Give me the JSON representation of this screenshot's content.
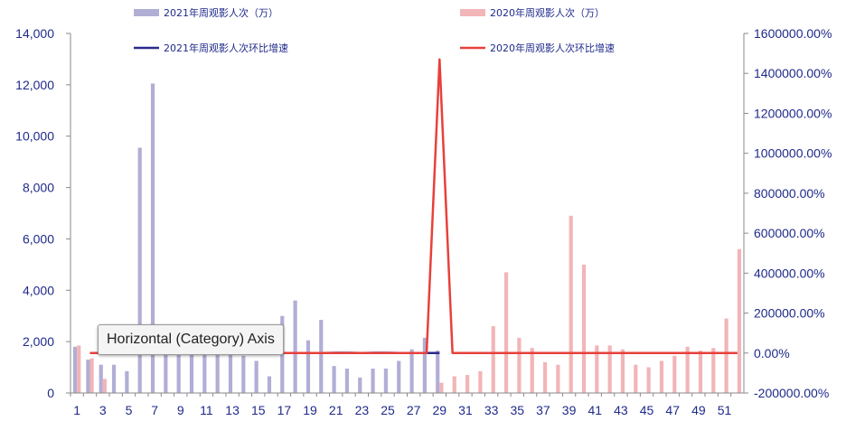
{
  "chart_data": {
    "type": "bar",
    "title": "",
    "xlabel": "",
    "ylabel": "",
    "ylim": [
      0,
      14000
    ],
    "y2lim": [
      -200000,
      1600000
    ],
    "x": [
      1,
      2,
      3,
      4,
      5,
      6,
      7,
      8,
      9,
      10,
      11,
      12,
      13,
      14,
      15,
      16,
      17,
      18,
      19,
      20,
      21,
      22,
      23,
      24,
      25,
      26,
      27,
      28,
      29,
      30,
      31,
      32,
      33,
      34,
      35,
      36,
      37,
      38,
      39,
      40,
      41,
      42,
      43,
      44,
      45,
      46,
      47,
      48,
      49,
      50,
      51,
      52
    ],
    "x_tick_labels": [
      "1",
      "3",
      "5",
      "7",
      "9",
      "11",
      "13",
      "15",
      "17",
      "19",
      "21",
      "23",
      "25",
      "27",
      "29",
      "31",
      "33",
      "35",
      "37",
      "39",
      "41",
      "43",
      "45",
      "47",
      "49",
      "51"
    ],
    "y_tick_labels": [
      "0",
      "2,000",
      "4,000",
      "6,000",
      "8,000",
      "10,000",
      "12,000",
      "14,000"
    ],
    "y2_tick_labels": [
      "-200000.00%",
      "0.00%",
      "200000.00%",
      "400000.00%",
      "600000.00%",
      "800000.00%",
      "1000000.00%",
      "1200000.00%",
      "1400000.00%",
      "1600000.00%"
    ],
    "series": [
      {
        "name": "2021年周观影人次（万）",
        "kind": "bar",
        "axis": "left",
        "color": "#b1aed6",
        "values": [
          1800,
          1300,
          1100,
          1100,
          850,
          9550,
          12050,
          1950,
          1750,
          1800,
          2200,
          2100,
          2150,
          1450,
          1250,
          650,
          3000,
          3600,
          2050,
          2850,
          1050,
          950,
          600,
          950,
          950,
          1250,
          1700,
          2150,
          1650,
          null,
          null,
          null,
          null,
          null,
          null,
          null,
          null,
          null,
          null,
          null,
          null,
          null,
          null,
          null,
          null,
          null,
          null,
          null,
          null,
          null,
          null,
          null
        ]
      },
      {
        "name": "2020年周观影人次（万）",
        "kind": "bar",
        "axis": "left",
        "color": "#f2b5b8",
        "values": [
          1850,
          1350,
          550,
          null,
          null,
          null,
          null,
          null,
          null,
          null,
          null,
          null,
          null,
          null,
          null,
          null,
          null,
          null,
          null,
          null,
          null,
          null,
          null,
          null,
          null,
          null,
          null,
          null,
          400,
          650,
          700,
          850,
          2600,
          4700,
          2150,
          1750,
          1200,
          1100,
          6900,
          5000,
          1850,
          1850,
          1700,
          1100,
          1000,
          1250,
          1450,
          1800,
          1650,
          1750,
          2900,
          5600
        ]
      },
      {
        "name": "2021年周观影人次环比增速",
        "kind": "line",
        "axis": "right",
        "color": "#2b2a8c",
        "values": [
          null,
          0,
          0,
          0,
          0,
          0,
          0,
          0,
          0,
          0,
          0,
          0,
          0,
          0,
          0,
          0,
          0,
          0,
          0,
          0,
          1000,
          1000,
          0,
          1000,
          1000,
          0,
          0,
          0,
          0,
          null,
          null,
          null,
          null,
          null,
          null,
          null,
          null,
          null,
          null,
          null,
          null,
          null,
          null,
          null,
          null,
          null,
          null,
          null,
          null,
          null,
          null,
          null
        ]
      },
      {
        "name": "2020年周观影人次环比增速",
        "kind": "line",
        "axis": "right",
        "color": "#e8403b",
        "values": [
          null,
          0,
          0,
          0,
          0,
          0,
          0,
          0,
          0,
          0,
          0,
          0,
          0,
          0,
          0,
          0,
          0,
          0,
          0,
          0,
          0,
          0,
          0,
          0,
          0,
          0,
          0,
          0,
          1470000,
          0,
          0,
          0,
          0,
          0,
          0,
          0,
          0,
          0,
          0,
          0,
          0,
          0,
          0,
          0,
          0,
          0,
          0,
          0,
          0,
          0,
          0,
          0
        ]
      }
    ],
    "legend": [
      {
        "label": "2021年周观影人次（万）",
        "kind": "bar",
        "color": "#b1aed6"
      },
      {
        "label": "2020年周观影人次（万）",
        "kind": "bar",
        "color": "#f2b5b8"
      },
      {
        "label": "2021年周观影人次环比增速",
        "kind": "line",
        "color": "#2b2a8c"
      },
      {
        "label": "2020年周观影人次环比增速",
        "kind": "line",
        "color": "#e8403b"
      }
    ],
    "legend_position": "top",
    "grid": false
  },
  "tooltip": {
    "text": "Horizontal (Category) Axis"
  }
}
